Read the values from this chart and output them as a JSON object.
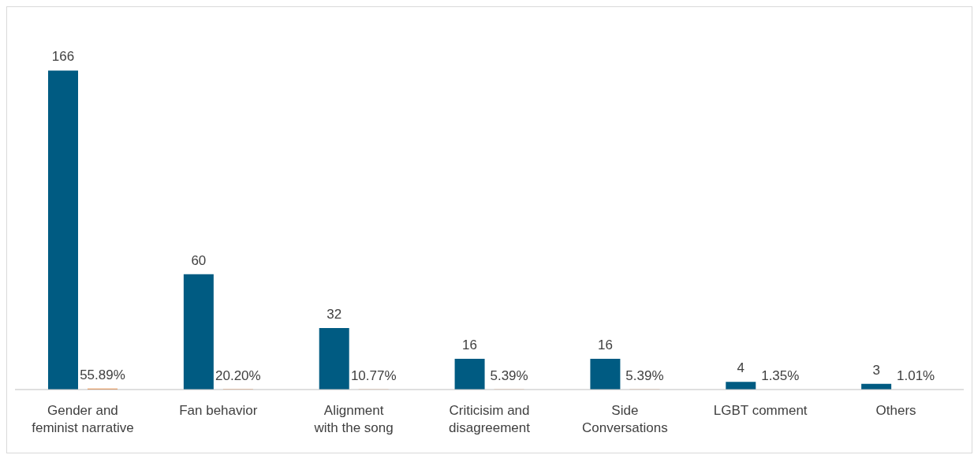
{
  "chart_data": {
    "type": "bar",
    "categories": [
      "Gender and feminist narrative",
      "Fan behavior",
      "Alignment with the song",
      "Criticisim and disagreement",
      "Side Conversations",
      "LGBT comment",
      "Others"
    ],
    "series": [
      {
        "color": "#005b82",
        "values": [
          166,
          60,
          32,
          16,
          16,
          4,
          3
        ],
        "value_labels": [
          "166",
          "60",
          "32",
          "16",
          "16",
          "4",
          "3"
        ]
      },
      {
        "color": "#f07f2a",
        "values": [
          0.5589,
          0.202,
          0.1077,
          0.0539,
          0.0539,
          0.0135,
          0.0101
        ],
        "value_labels": [
          "55.89%",
          "20.20%",
          "10.77%",
          "5.39%",
          "5.39%",
          "1.35%",
          "1.01%"
        ]
      }
    ],
    "legend": false,
    "grid": false
  }
}
